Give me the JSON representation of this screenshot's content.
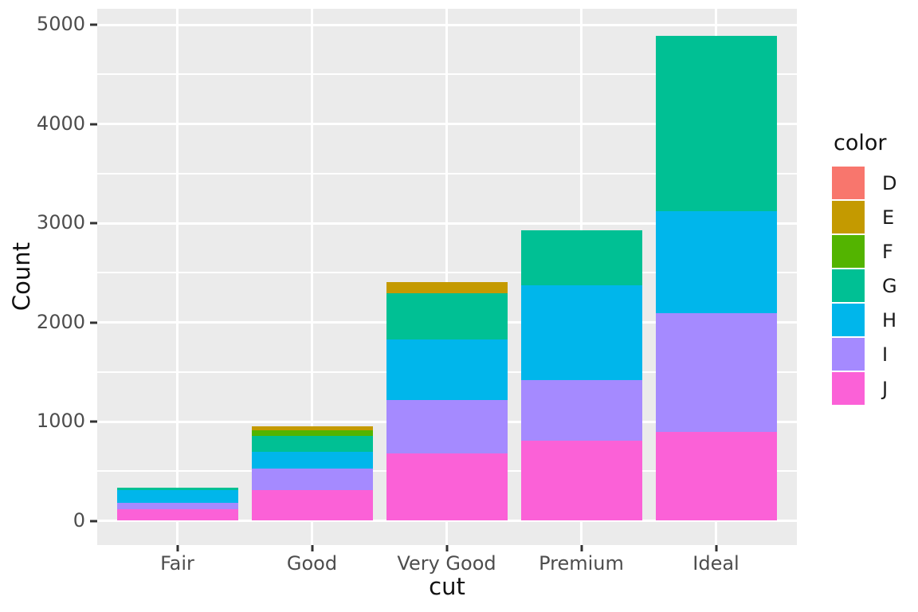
{
  "chart_data": {
    "type": "bar",
    "stacked": true,
    "title": "",
    "xlabel": "cut",
    "ylabel": "Count",
    "categories": [
      "Fair",
      "Good",
      "Very Good",
      "Premium",
      "Ideal"
    ],
    "series": [
      {
        "name": "D",
        "color": "#F8766D",
        "values": [
          0,
          0,
          0,
          0,
          0
        ]
      },
      {
        "name": "E",
        "color": "#C49A00",
        "values": [
          0,
          38,
          112,
          0,
          0
        ]
      },
      {
        "name": "F",
        "color": "#53B400",
        "values": [
          0,
          56,
          0,
          0,
          0
        ]
      },
      {
        "name": "G",
        "color": "#00C094",
        "values": [
          22,
          158,
          466,
          557,
          1770
        ]
      },
      {
        "name": "H",
        "color": "#00B6EB",
        "values": [
          133,
          173,
          613,
          951,
          1031
        ]
      },
      {
        "name": "I",
        "color": "#A58AFF",
        "values": [
          62,
          214,
          536,
          615,
          1197
        ]
      },
      {
        "name": "J",
        "color": "#FB61D7",
        "values": [
          116,
          309,
          679,
          805,
          892
        ]
      }
    ],
    "stack_note": "first series (D) stacks on top, last series (J) at bottom",
    "totals": [
      333,
      948,
      2406,
      2928,
      4890
    ],
    "ylim": [
      0,
      5000
    ],
    "y_major_ticks": [
      0,
      1000,
      2000,
      3000,
      4000,
      5000
    ],
    "y_minor_gridlines": [
      500,
      1500,
      2500,
      3500,
      4500
    ],
    "grid": true,
    "legend": {
      "title": "color",
      "position": "right",
      "entries": [
        "D",
        "E",
        "F",
        "G",
        "H",
        "I",
        "J"
      ]
    },
    "style": {
      "panel_background": "#EBEBEB",
      "grid_color": "#FFFFFF",
      "tick_text_color": "#4D4D4D",
      "axis_title_color": "#111111",
      "tick_mark_color": "#333333"
    }
  }
}
